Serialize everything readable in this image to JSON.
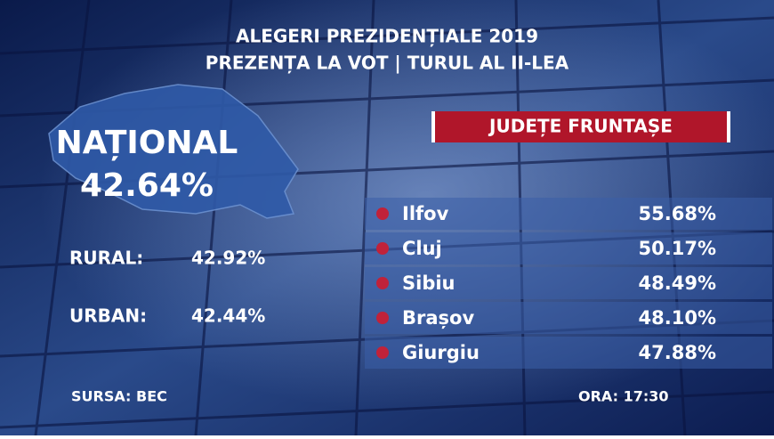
{
  "header": {
    "title": "ALEGERI PREZIDENȚIALE 2019",
    "subtitle": "PREZENȚA LA VOT | TURUL AL II-LEA"
  },
  "national": {
    "label": "NAȚIONAL",
    "value": "42.64%"
  },
  "breakdown": [
    {
      "label": "RURAL:",
      "value": "42.92%"
    },
    {
      "label": "URBAN:",
      "value": "42.44%"
    }
  ],
  "counties": {
    "title": "JUDEȚE FRUNTAȘE",
    "rows": [
      [
        "Ilfov",
        "55.68%"
      ],
      [
        "Cluj",
        "50.17%"
      ],
      [
        "Sibiu",
        "48.49%"
      ],
      [
        "Brașov",
        "48.10%"
      ],
      [
        "Giurgiu",
        "47.88%"
      ]
    ]
  },
  "footer": {
    "source": "SURSA: BEC",
    "time": "ORA: 17:30"
  }
}
